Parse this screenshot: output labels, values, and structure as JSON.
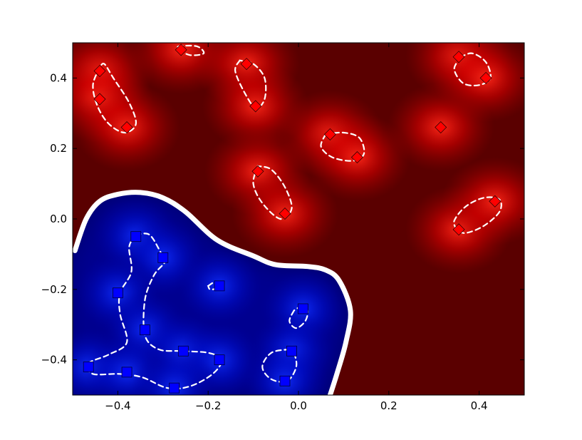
{
  "chart_data": {
    "type": "heatmap",
    "title": "",
    "xlabel": "",
    "ylabel": "",
    "xlim": [
      -0.5,
      0.5
    ],
    "ylim": [
      -0.5,
      0.5
    ],
    "grid": false,
    "legend": "none",
    "x_ticks": [
      -0.4,
      -0.2,
      0.0,
      0.2,
      0.4
    ],
    "x_tick_labels": [
      "−0.4",
      "−0.2",
      "0.0",
      "0.2",
      "0.4"
    ],
    "y_ticks": [
      -0.4,
      -0.2,
      0.0,
      0.2,
      0.4
    ],
    "y_tick_labels": [
      "−0.4",
      "−0.2",
      "0.0",
      "0.2",
      "0.4"
    ],
    "colors": {
      "positive_class": "#ff0000",
      "negative_class": "#0000ff",
      "positive_background": "#5a0000",
      "negative_background": "#000064",
      "boundary": "#ffffff",
      "axes_frame": "#000000"
    },
    "series": [
      {
        "marker": "diamond",
        "color": "#ff0000",
        "points": [
          [
            -0.44,
            0.42
          ],
          [
            -0.44,
            0.34
          ],
          [
            -0.38,
            0.26
          ],
          [
            -0.26,
            0.48
          ],
          [
            -0.115,
            0.44
          ],
          [
            -0.095,
            0.32
          ],
          [
            -0.09,
            0.135
          ],
          [
            -0.03,
            0.015
          ],
          [
            0.07,
            0.24
          ],
          [
            0.13,
            0.175
          ],
          [
            0.315,
            0.26
          ],
          [
            0.355,
            0.46
          ],
          [
            0.415,
            0.4
          ],
          [
            0.355,
            -0.03
          ],
          [
            0.435,
            0.05
          ]
        ]
      },
      {
        "marker": "square",
        "color": "#0000ff",
        "points": [
          [
            -0.36,
            -0.05
          ],
          [
            -0.3,
            -0.11
          ],
          [
            -0.175,
            -0.19
          ],
          [
            -0.4,
            -0.21
          ],
          [
            -0.34,
            -0.315
          ],
          [
            0.01,
            -0.255
          ],
          [
            -0.255,
            -0.375
          ],
          [
            -0.175,
            -0.4
          ],
          [
            -0.015,
            -0.375
          ],
          [
            -0.465,
            -0.42
          ],
          [
            -0.38,
            -0.435
          ],
          [
            -0.275,
            -0.48
          ],
          [
            -0.03,
            -0.46
          ]
        ]
      }
    ],
    "decision_boundary": [
      [
        -0.495,
        -0.09
      ],
      [
        -0.47,
        0.0
      ],
      [
        -0.44,
        0.05
      ],
      [
        -0.4,
        0.07
      ],
      [
        -0.35,
        0.075
      ],
      [
        -0.3,
        0.06
      ],
      [
        -0.25,
        0.02
      ],
      [
        -0.18,
        -0.06
      ],
      [
        -0.1,
        -0.105
      ],
      [
        -0.05,
        -0.13
      ],
      [
        0.02,
        -0.135
      ],
      [
        0.06,
        -0.145
      ],
      [
        0.09,
        -0.175
      ],
      [
        0.115,
        -0.26
      ],
      [
        0.105,
        -0.35
      ],
      [
        0.085,
        -0.44
      ],
      [
        0.07,
        -0.5
      ]
    ],
    "margin_contours": [
      [
        [
          -0.44,
          0.43
        ],
        [
          -0.455,
          0.38
        ],
        [
          -0.445,
          0.32
        ],
        [
          -0.42,
          0.27
        ],
        [
          -0.385,
          0.245
        ],
        [
          -0.36,
          0.27
        ],
        [
          -0.375,
          0.33
        ],
        [
          -0.41,
          0.4
        ],
        [
          -0.43,
          0.44
        ],
        [
          -0.44,
          0.43
        ]
      ],
      [
        [
          -0.265,
          0.48
        ],
        [
          -0.24,
          0.465
        ],
        [
          -0.21,
          0.47
        ],
        [
          -0.225,
          0.49
        ],
        [
          -0.265,
          0.49
        ],
        [
          -0.265,
          0.48
        ]
      ],
      [
        [
          -0.13,
          0.45
        ],
        [
          -0.14,
          0.42
        ],
        [
          -0.12,
          0.36
        ],
        [
          -0.095,
          0.315
        ],
        [
          -0.075,
          0.34
        ],
        [
          -0.075,
          0.4
        ],
        [
          -0.1,
          0.44
        ],
        [
          -0.13,
          0.45
        ]
      ],
      [
        [
          -0.09,
          0.15
        ],
        [
          -0.1,
          0.1
        ],
        [
          -0.08,
          0.045
        ],
        [
          -0.04,
          0.0
        ],
        [
          -0.015,
          0.03
        ],
        [
          -0.03,
          0.09
        ],
        [
          -0.06,
          0.14
        ],
        [
          -0.09,
          0.15
        ]
      ],
      [
        [
          0.06,
          0.24
        ],
        [
          0.05,
          0.205
        ],
        [
          0.075,
          0.175
        ],
        [
          0.12,
          0.165
        ],
        [
          0.145,
          0.185
        ],
        [
          0.135,
          0.23
        ],
        [
          0.1,
          0.245
        ],
        [
          0.06,
          0.24
        ]
      ],
      [
        [
          0.36,
          0.46
        ],
        [
          0.345,
          0.425
        ],
        [
          0.365,
          0.385
        ],
        [
          0.4,
          0.38
        ],
        [
          0.425,
          0.4
        ],
        [
          0.415,
          0.445
        ],
        [
          0.385,
          0.47
        ],
        [
          0.36,
          0.46
        ]
      ],
      [
        [
          0.35,
          -0.03
        ],
        [
          0.345,
          -0.005
        ],
        [
          0.37,
          0.035
        ],
        [
          0.41,
          0.06
        ],
        [
          0.445,
          0.055
        ],
        [
          0.445,
          0.02
        ],
        [
          0.41,
          -0.02
        ],
        [
          0.37,
          -0.04
        ],
        [
          0.35,
          -0.03
        ]
      ],
      [
        [
          -0.36,
          -0.045
        ],
        [
          -0.375,
          -0.08
        ],
        [
          -0.37,
          -0.15
        ],
        [
          -0.395,
          -0.21
        ],
        [
          -0.395,
          -0.27
        ],
        [
          -0.38,
          -0.35
        ],
        [
          -0.42,
          -0.385
        ],
        [
          -0.465,
          -0.41
        ],
        [
          -0.455,
          -0.44
        ],
        [
          -0.395,
          -0.44
        ],
        [
          -0.345,
          -0.45
        ],
        [
          -0.29,
          -0.48
        ],
        [
          -0.24,
          -0.475
        ],
        [
          -0.19,
          -0.44
        ],
        [
          -0.17,
          -0.4
        ],
        [
          -0.2,
          -0.38
        ],
        [
          -0.26,
          -0.375
        ],
        [
          -0.31,
          -0.37
        ],
        [
          -0.34,
          -0.33
        ],
        [
          -0.34,
          -0.23
        ],
        [
          -0.32,
          -0.16
        ],
        [
          -0.295,
          -0.12
        ],
        [
          -0.305,
          -0.095
        ],
        [
          -0.33,
          -0.045
        ],
        [
          -0.36,
          -0.045
        ]
      ],
      [
        [
          -0.2,
          -0.19
        ],
        [
          -0.185,
          -0.18
        ],
        [
          -0.175,
          -0.195
        ],
        [
          -0.195,
          -0.2
        ],
        [
          -0.2,
          -0.19
        ]
      ],
      [
        [
          -0.01,
          -0.26
        ],
        [
          -0.02,
          -0.29
        ],
        [
          -0.005,
          -0.31
        ],
        [
          0.015,
          -0.29
        ],
        [
          0.02,
          -0.26
        ],
        [
          0.005,
          -0.25
        ],
        [
          -0.01,
          -0.26
        ]
      ],
      [
        [
          -0.02,
          -0.37
        ],
        [
          -0.06,
          -0.38
        ],
        [
          -0.08,
          -0.42
        ],
        [
          -0.06,
          -0.455
        ],
        [
          -0.025,
          -0.46
        ],
        [
          -0.005,
          -0.42
        ],
        [
          -0.01,
          -0.38
        ],
        [
          -0.02,
          -0.37
        ]
      ]
    ]
  }
}
